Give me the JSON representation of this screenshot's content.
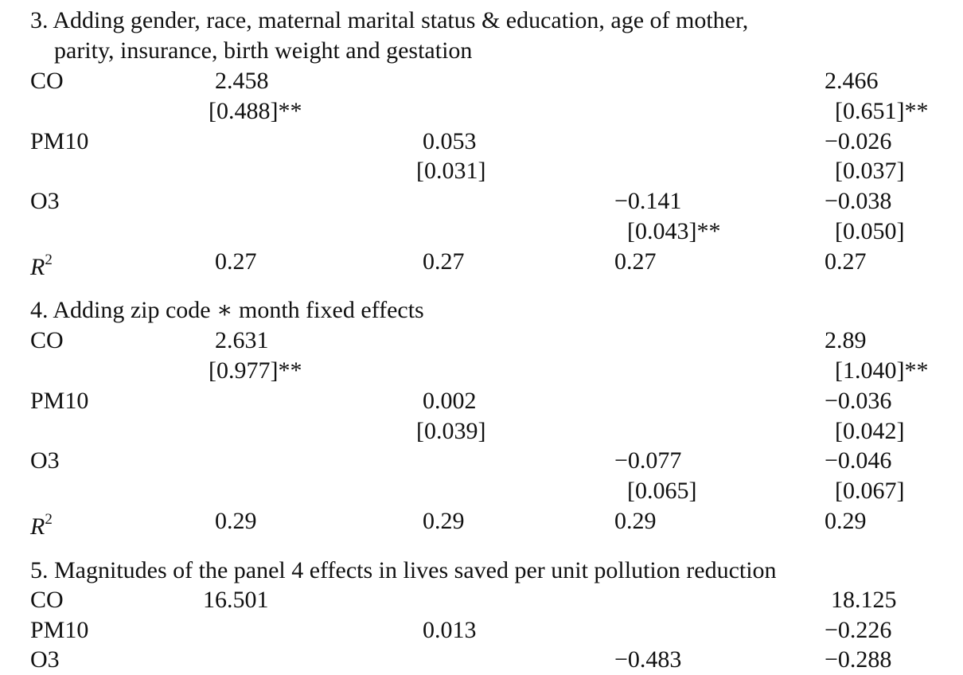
{
  "panels": [
    {
      "heading_line1": "3. Adding gender, race, maternal marital status & education, age of mother,",
      "heading_line2": "parity, insurance, birth weight and gestation",
      "rows": {
        "co": {
          "label": "CO",
          "c1": "2.458",
          "c1_se": "[0.488]**",
          "c4": "2.466",
          "c4_se": "[0.651]**"
        },
        "pm10": {
          "label": "PM10",
          "c2": "0.053",
          "c2_se": "[0.031]",
          "c4": "−0.026",
          "c4_se": "[0.037]"
        },
        "o3": {
          "label": "O3",
          "c3": "−0.141",
          "c3_se": "[0.043]**",
          "c4": "−0.038",
          "c4_se": "[0.050]"
        },
        "r2": {
          "label_base": "R",
          "label_sup": "2",
          "c1": "0.27",
          "c2": "0.27",
          "c3": "0.27",
          "c4": "0.27"
        }
      }
    },
    {
      "heading_line1": "4. Adding zip code ∗ month fixed effects",
      "rows": {
        "co": {
          "label": "CO",
          "c1": "2.631",
          "c1_se": "[0.977]**",
          "c4": "2.89",
          "c4_se": "[1.040]**"
        },
        "pm10": {
          "label": "PM10",
          "c2": "0.002",
          "c2_se": "[0.039]",
          "c4": "−0.036",
          "c4_se": "[0.042]"
        },
        "o3": {
          "label": "O3",
          "c3": "−0.077",
          "c3_se": "[0.065]",
          "c4": "−0.046",
          "c4_se": "[0.067]"
        },
        "r2": {
          "label_base": "R",
          "label_sup": "2",
          "c1": "0.29",
          "c2": "0.29",
          "c3": "0.29",
          "c4": "0.29"
        }
      }
    },
    {
      "heading_line1": "5. Magnitudes of the panel 4 effects in lives saved per unit pollution reduction",
      "rows": {
        "co": {
          "label": "CO",
          "c1": "16.501",
          "c4": "18.125"
        },
        "pm10": {
          "label": "PM10",
          "c2": "0.013",
          "c4": "−0.226"
        },
        "o3": {
          "label": "O3",
          "c3": "−0.483",
          "c4": "−0.288"
        }
      }
    }
  ]
}
